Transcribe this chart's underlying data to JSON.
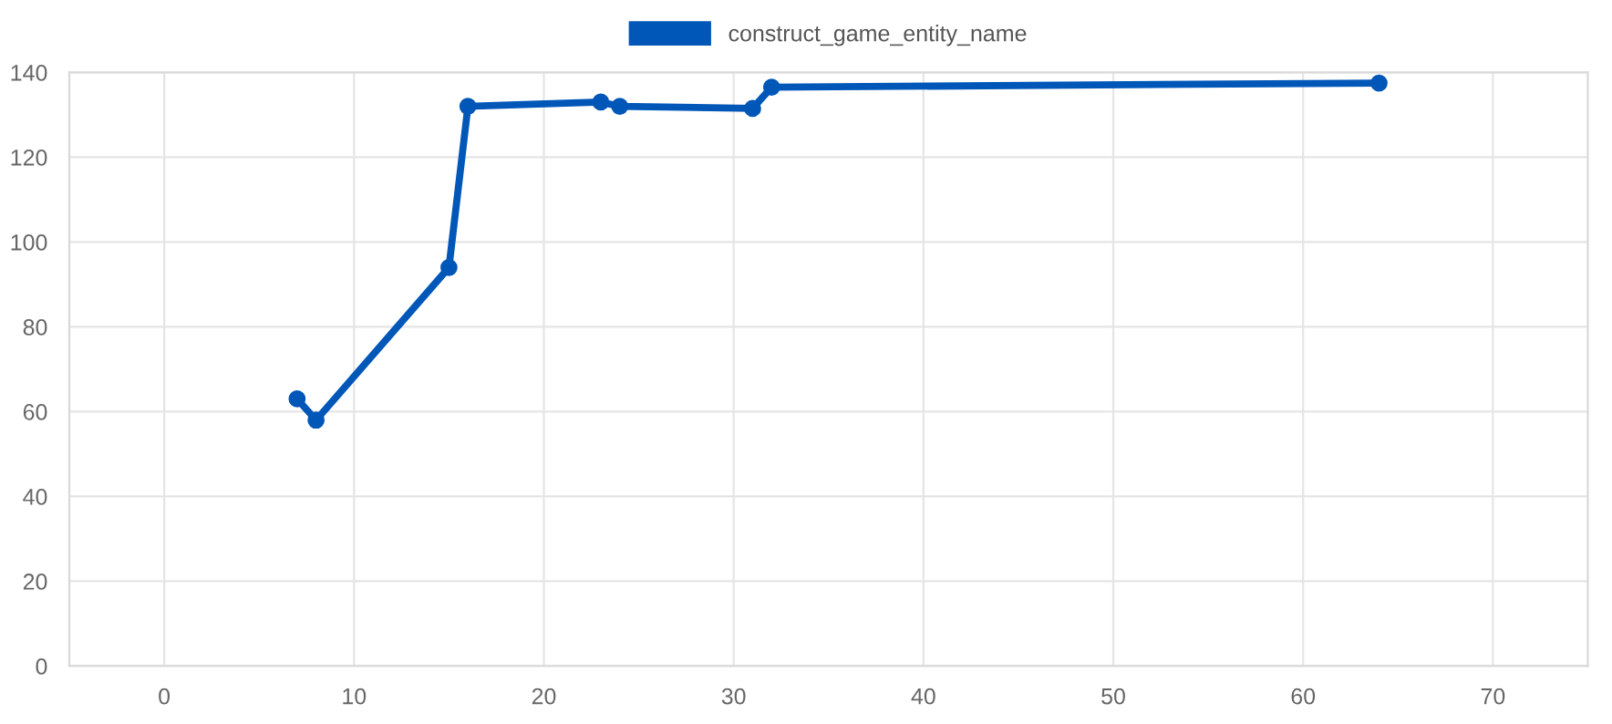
{
  "chart_data": {
    "type": "line",
    "x": [
      7,
      8,
      15,
      16,
      23,
      24,
      31,
      32,
      64
    ],
    "series": [
      {
        "name": "construct_game_entity_name",
        "color": "#0057b8",
        "values": [
          63,
          58,
          94,
          132,
          133,
          132,
          131.5,
          136.5,
          137.5
        ]
      }
    ],
    "xlim": [
      -5,
      75
    ],
    "xticks": [
      0,
      10,
      20,
      30,
      40,
      50,
      60,
      70
    ],
    "ylim": [
      0,
      140
    ],
    "yticks": [
      0,
      20,
      40,
      60,
      80,
      100,
      120,
      140
    ],
    "grid": true,
    "legend": "top",
    "marker": "circle",
    "line_style": "solid"
  }
}
